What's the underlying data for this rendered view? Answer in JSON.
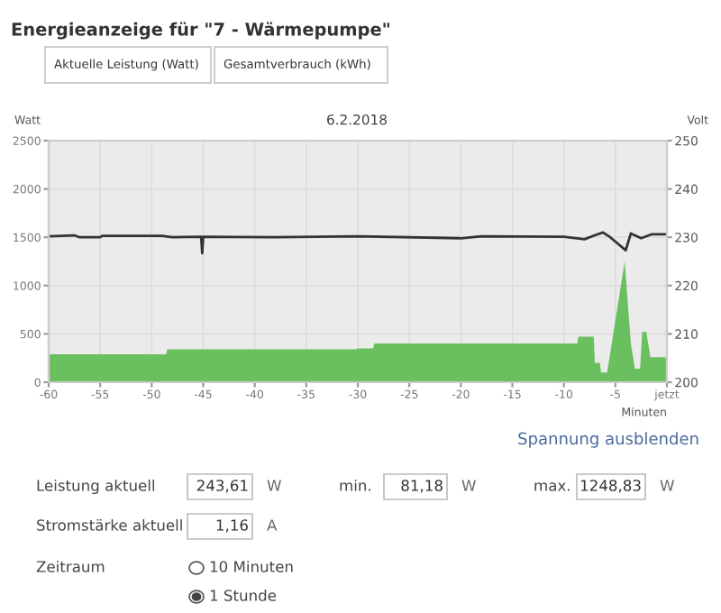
{
  "chart_data": {
    "type": "area",
    "title": "Energieanzeige für \"7 - Wärmepumpe\"",
    "subtitle": "6.2.2018",
    "xlabel": "Minuten",
    "ylabel": "Watt",
    "y2label": "Volt",
    "xlim": [
      -60,
      0
    ],
    "xticks": [
      -60,
      -55,
      -50,
      -45,
      -40,
      -35,
      -30,
      -25,
      -20,
      -15,
      -10,
      -5,
      {
        "value": 0,
        "label": "jetzt"
      }
    ],
    "ylim": [
      0,
      2500
    ],
    "yticks": [
      0,
      500,
      1000,
      1500,
      2000,
      2500
    ],
    "y2lim": [
      200,
      250
    ],
    "y2ticks": [
      200,
      210,
      220,
      230,
      240,
      250
    ],
    "grid": true,
    "legend": false,
    "series": [
      {
        "color": "#6abf5e",
        "x": [
          -60,
          -48.6,
          -48.5,
          -30.2,
          -30,
          -28.5,
          -28.4,
          -8.7,
          -8.6,
          -7.1,
          -7,
          -6.5,
          -6.4,
          -5.8,
          -4.1,
          -3.5,
          -3.1,
          -2.6,
          -2.4,
          -2.0,
          -1.6,
          -0.2,
          0
        ],
        "values": [
          290,
          290,
          340,
          340,
          350,
          350,
          400,
          400,
          470,
          470,
          200,
          200,
          100,
          100,
          1250,
          400,
          140,
          140,
          520,
          520,
          260,
          260,
          240
        ]
      },
      {
        "type": "line",
        "axis": "y2",
        "color": "#333333",
        "x": [
          -60,
          -57.5,
          -57,
          -55,
          -54.8,
          -49,
          -48,
          -45.2,
          -45.1,
          -45,
          -38,
          -30,
          -20,
          -18,
          -10,
          -8,
          -7,
          -6.2,
          -5.5,
          -4,
          -3.5,
          -2.5,
          -1.5,
          0
        ],
        "values": [
          230.2,
          230.4,
          230.0,
          230.0,
          230.3,
          230.3,
          230.0,
          230.1,
          226.7,
          230.1,
          230.0,
          230.2,
          229.8,
          230.2,
          230.1,
          229.6,
          230.4,
          231.0,
          230.0,
          227.3,
          230.8,
          229.8,
          230.6,
          230.6
        ]
      }
    ],
    "annotations": [
      "Aktuelle Leistung (Watt)",
      "Gesamtverbrauch (kWh)",
      "Spannung ausblenden",
      "Leistung aktuell",
      "243,61",
      "W",
      "min.",
      "81,18",
      "W",
      "max.",
      "1248,83",
      "W",
      "Stromstärke aktuell",
      "1,16",
      "A",
      "Zeitraum",
      "10 Minuten",
      "1 Stunde"
    ]
  }
}
